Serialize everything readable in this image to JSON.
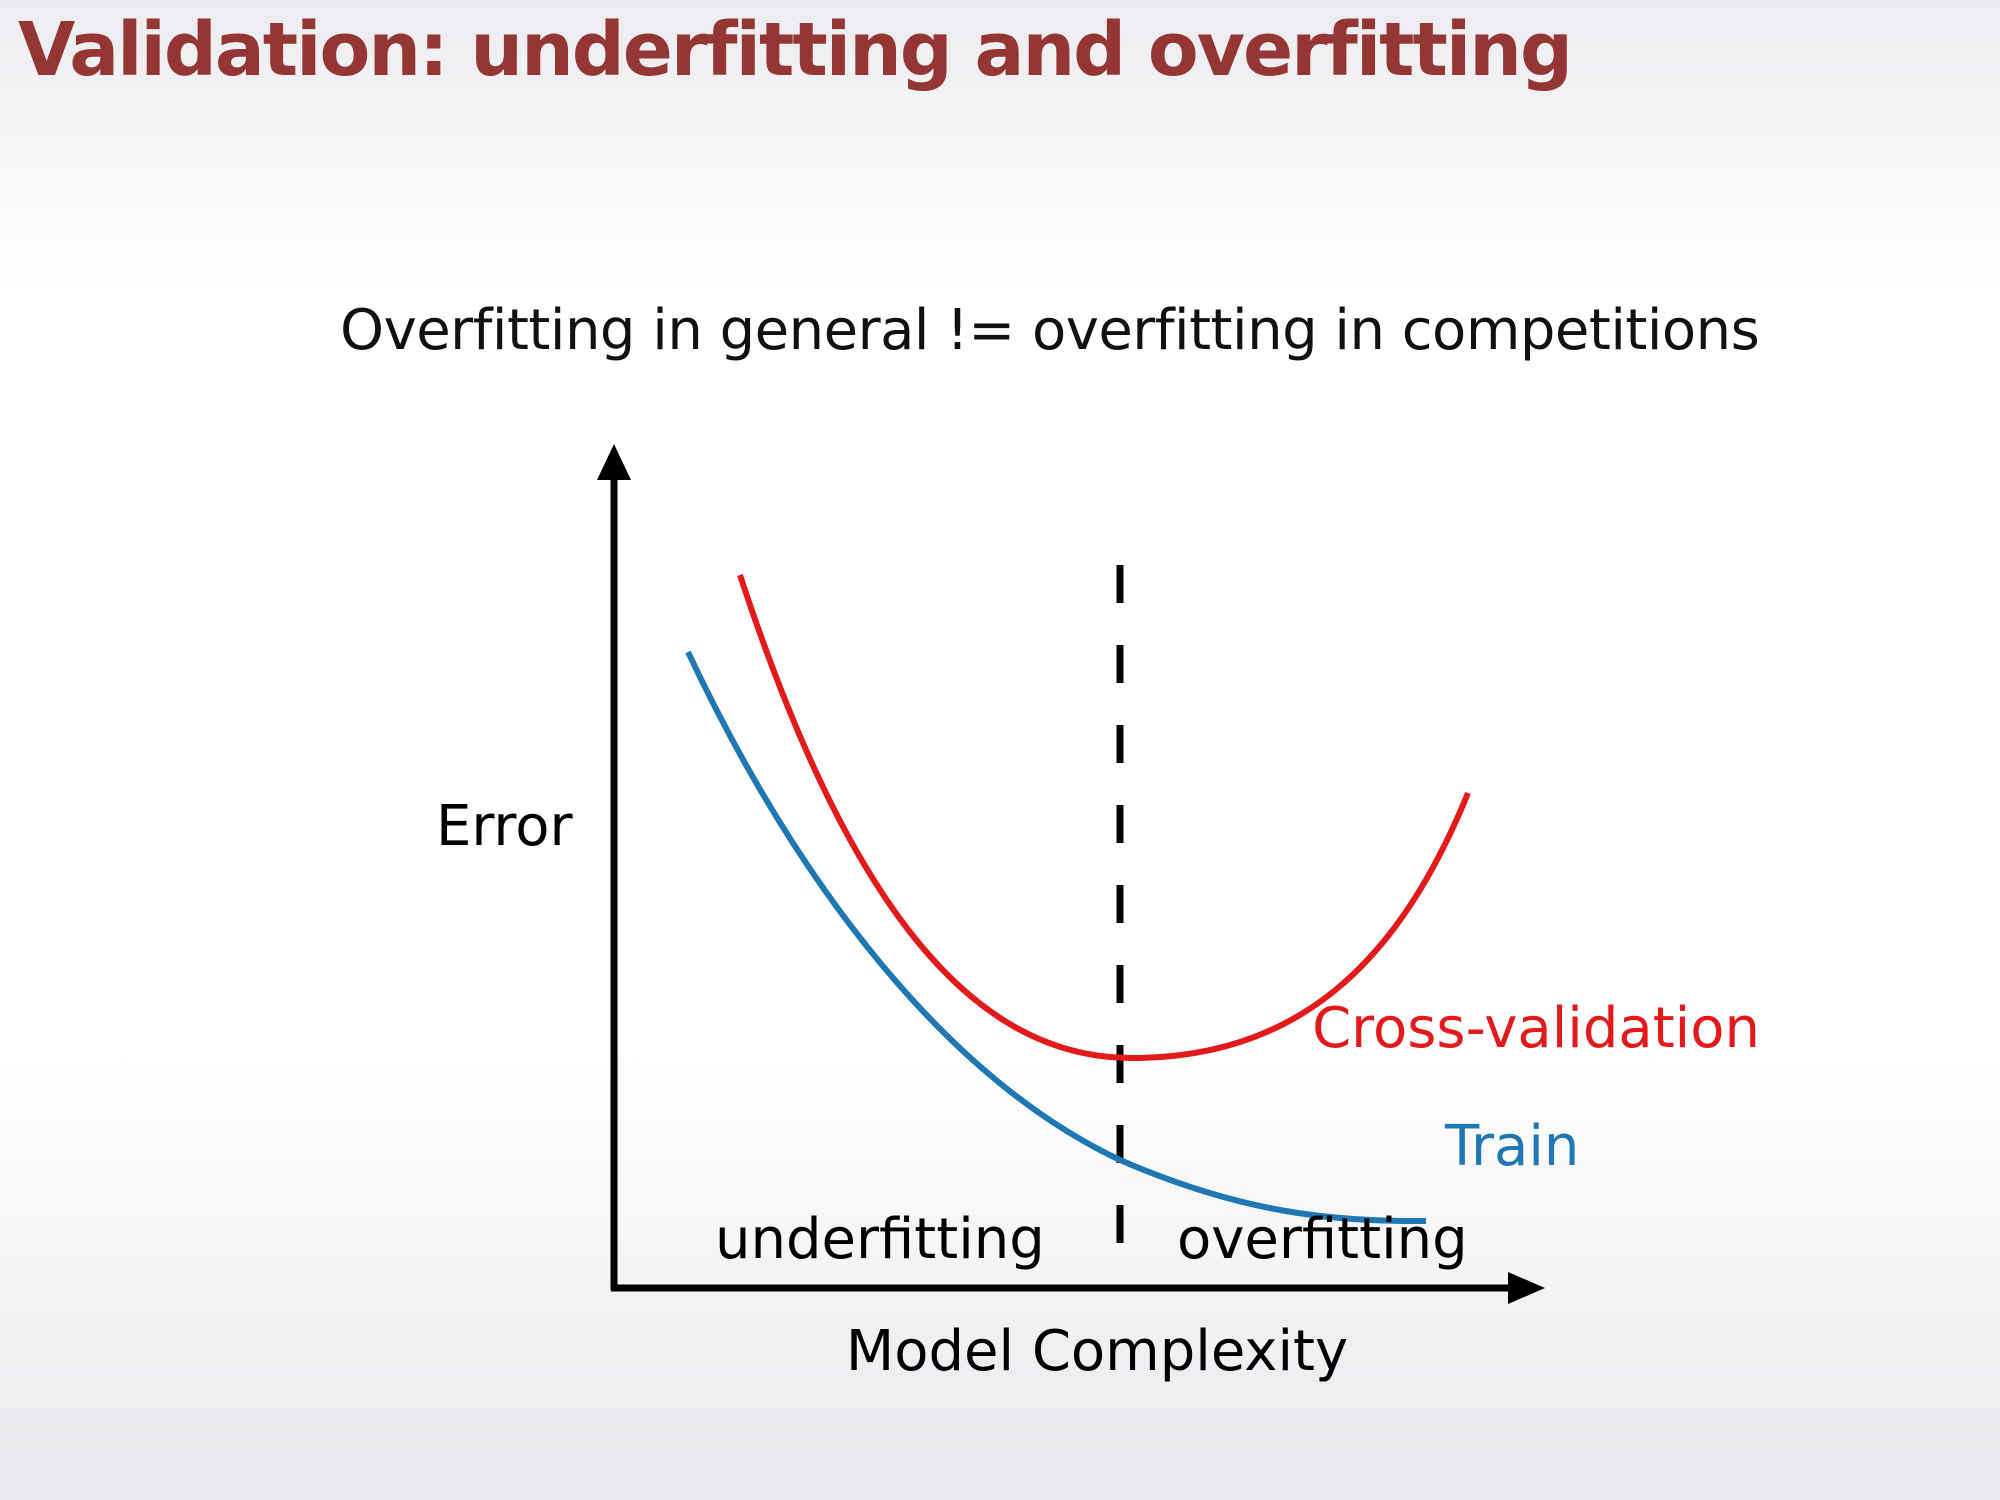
{
  "slide": {
    "title": "Validation: underfitting and overfitting",
    "subtitle": "Overfitting in general != overfitting in competitions"
  },
  "diagram": {
    "y_axis_label": "Error",
    "x_axis_label": "Model Complexity",
    "regions": {
      "left": "underfitting",
      "right": "overfitting"
    },
    "curves": {
      "cross_validation": "Cross-validation",
      "train": "Train"
    }
  },
  "colors": {
    "title": "#943634",
    "cross_validation": "#e31a1c",
    "train": "#1f78b4",
    "axes": "#000000"
  }
}
